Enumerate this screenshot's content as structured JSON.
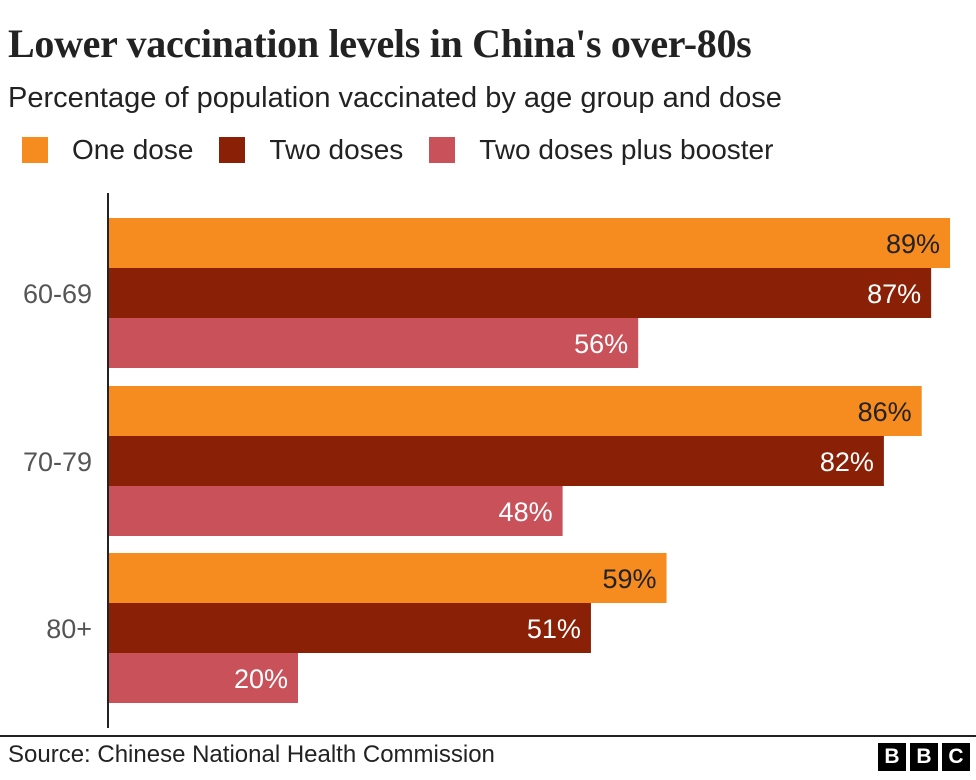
{
  "title": "Lower vaccination levels in China's over-80s",
  "subtitle": "Percentage of population vaccinated by age group and dose",
  "source": "Source: Chinese National Health Commission",
  "logo": [
    "B",
    "B",
    "C"
  ],
  "colors": {
    "one_dose": "#f68b1f",
    "two_doses": "#8a2106",
    "booster": "#c9515a",
    "axis": "#222222"
  },
  "chart_data": {
    "type": "bar",
    "orientation": "horizontal",
    "title": "Lower vaccination levels in China's over-80s",
    "subtitle": "Percentage of population vaccinated by age group and dose",
    "categories": [
      "60-69",
      "70-79",
      "80+"
    ],
    "series": [
      {
        "name": "One dose",
        "values": [
          89,
          86,
          59
        ],
        "labels": [
          "89%",
          "86%",
          "59%"
        ],
        "color": "#f68b1f",
        "label_color": "#222222"
      },
      {
        "name": "Two doses",
        "values": [
          87,
          82,
          51
        ],
        "labels": [
          "87%",
          "82%",
          "51%"
        ],
        "color": "#8a2106",
        "label_color": "#ffffff"
      },
      {
        "name": "Two doses plus booster",
        "values": [
          56,
          48,
          20
        ],
        "labels": [
          "56%",
          "48%",
          "20%"
        ],
        "color": "#c9515a",
        "label_color": "#ffffff"
      }
    ],
    "xlim": [
      0,
      100
    ],
    "legend": "top-left",
    "grid": false
  }
}
